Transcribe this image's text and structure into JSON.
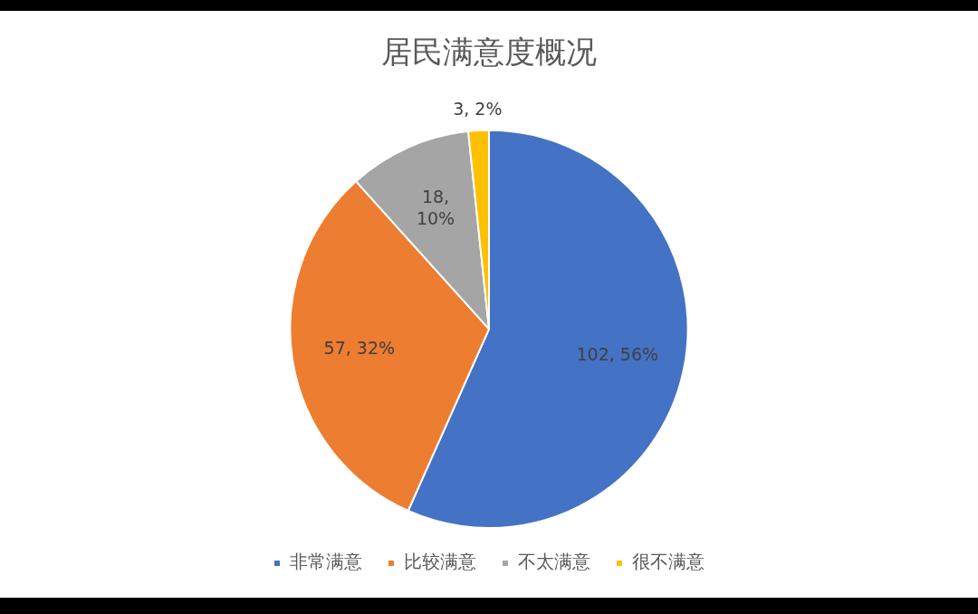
{
  "chart_data": {
    "type": "pie",
    "title": "居民满意度概况",
    "categories": [
      "非常满意",
      "比较满意",
      "不太满意",
      "很不满意"
    ],
    "values": [
      102,
      57,
      18,
      3
    ],
    "colors": [
      "#4472c4",
      "#ed7d31",
      "#a5a5a5",
      "#ffc000"
    ],
    "value_labels": [
      "102, 56%",
      "57, 32%",
      "18, 10%",
      "3, 2%"
    ],
    "legend": "bottom"
  }
}
